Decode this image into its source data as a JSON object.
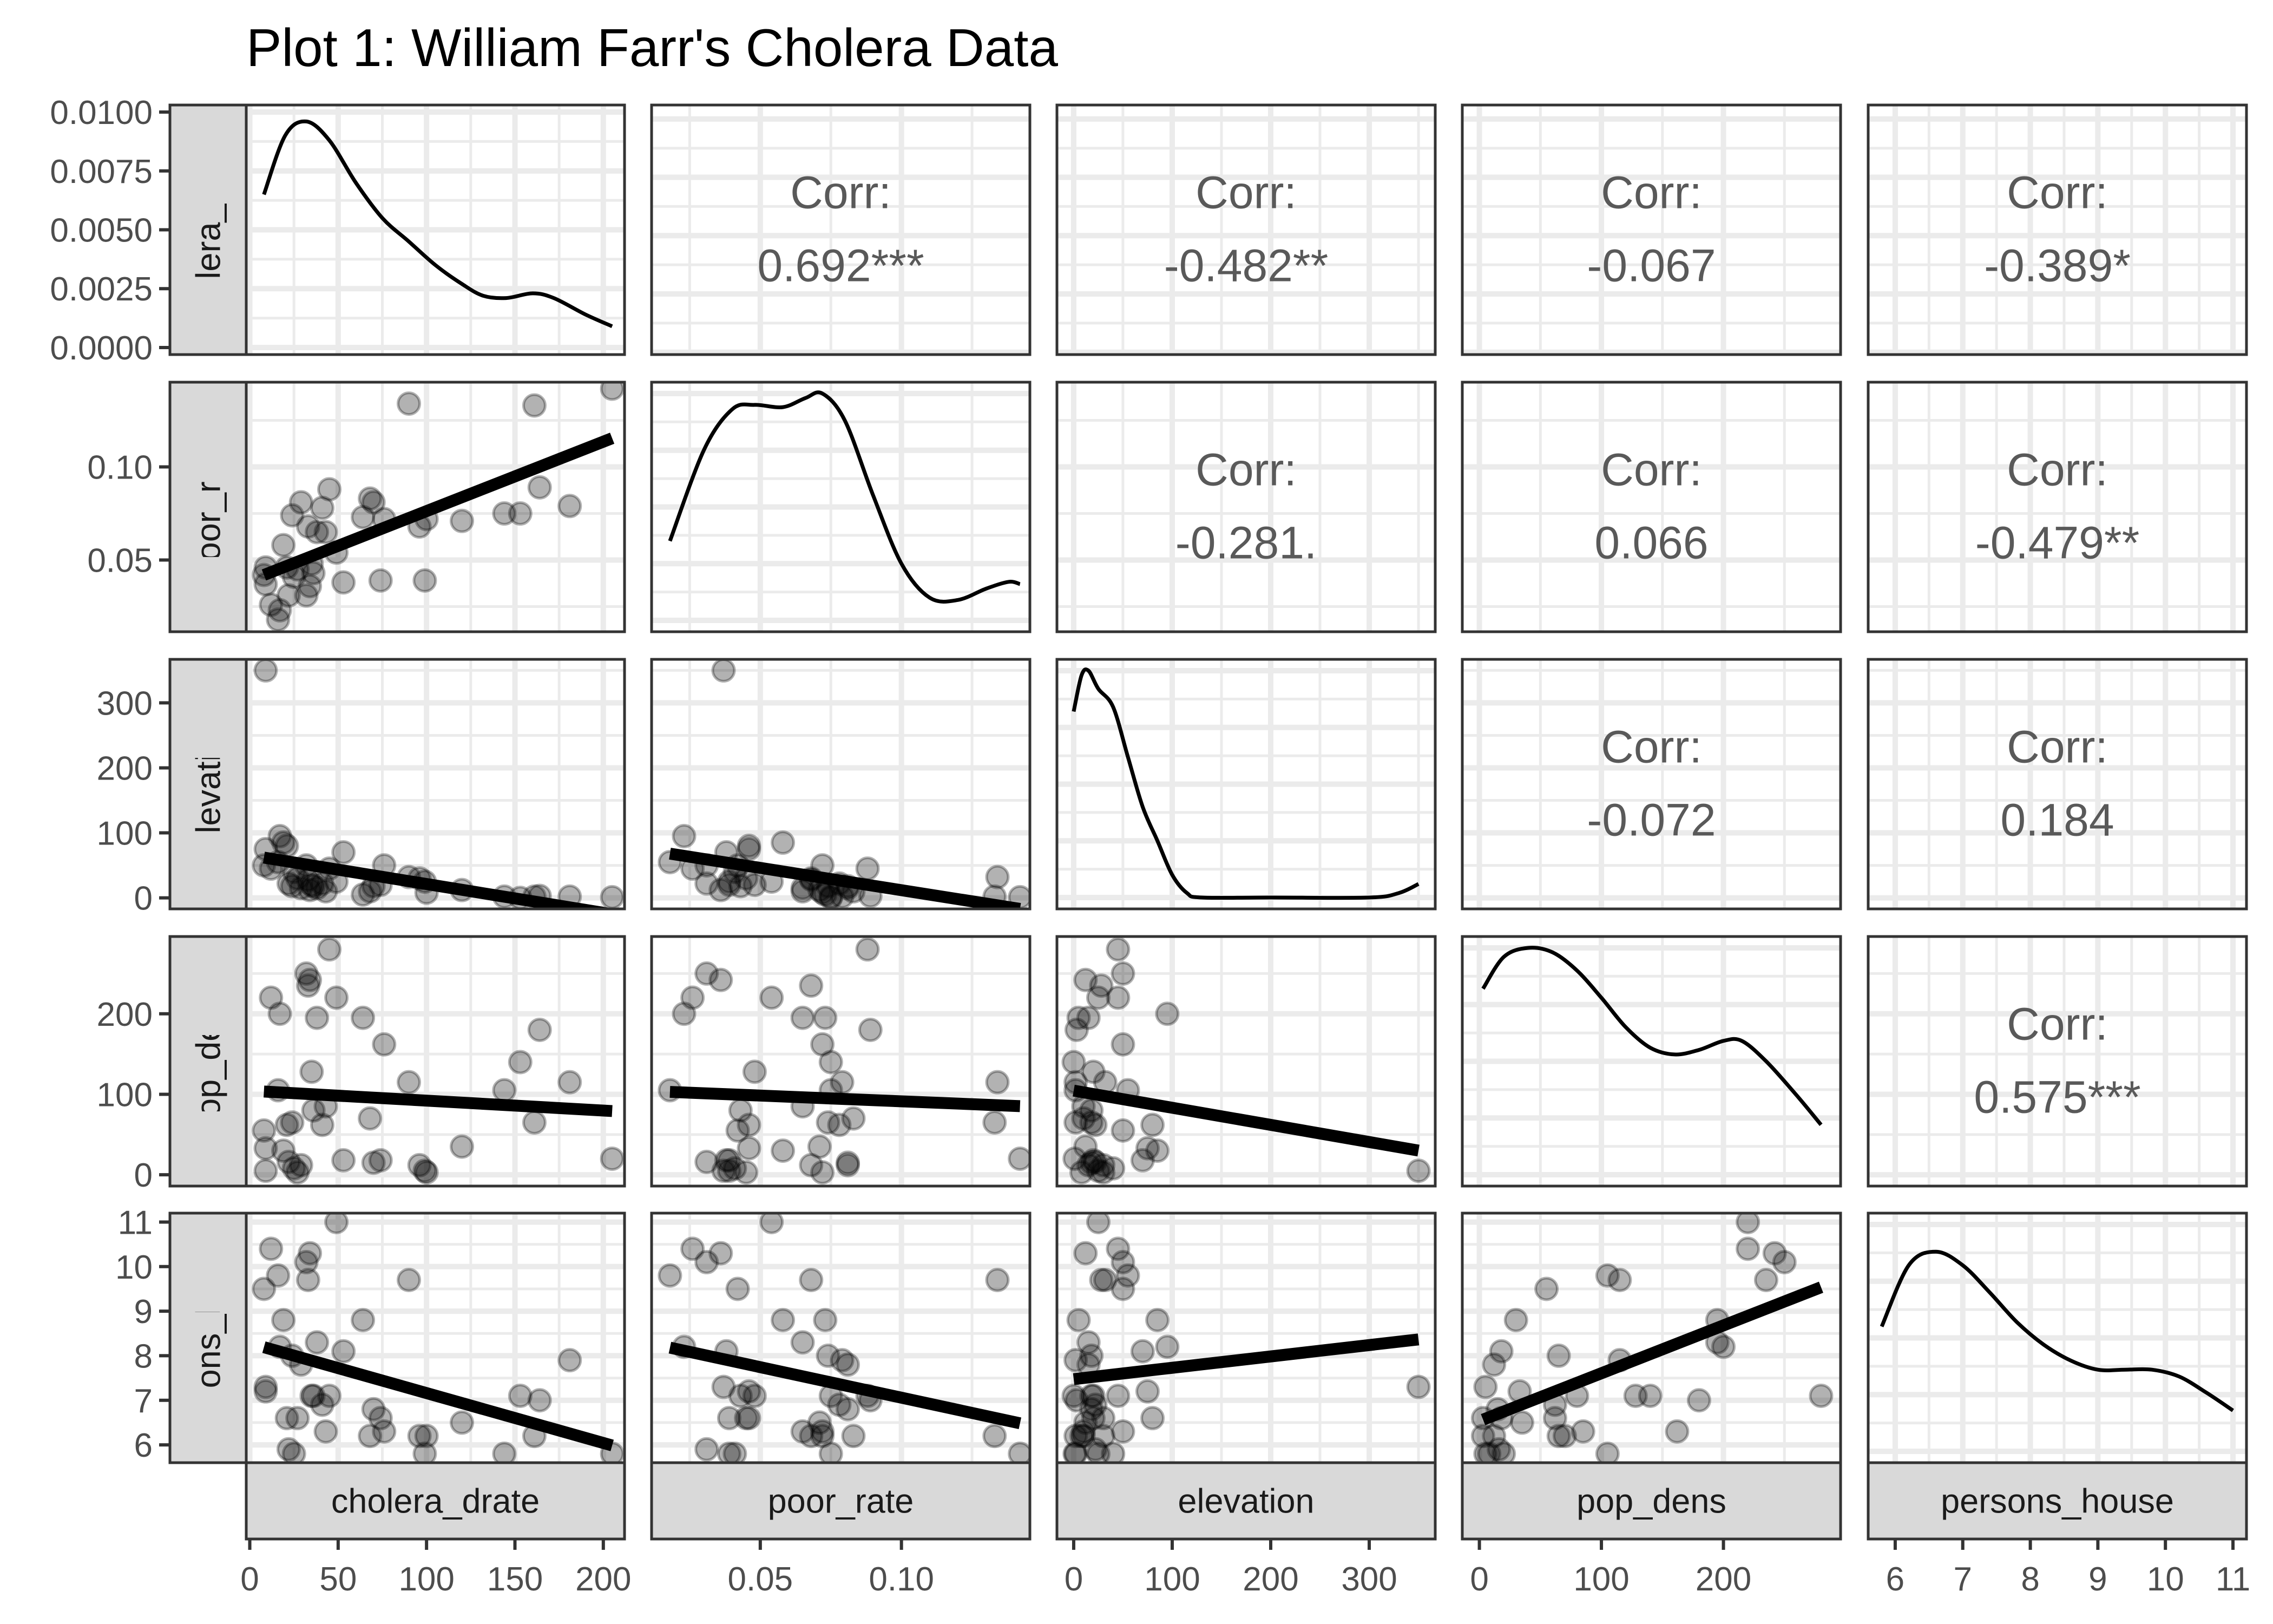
{
  "chart_data": {
    "type": "scatter",
    "subtype": "scatterplot-matrix",
    "title": "Plot 1: William Farr's Cholera Data",
    "variables": [
      "cholera_drate",
      "poor_rate",
      "elevation",
      "pop_dens",
      "persons_house"
    ],
    "axes": {
      "cholera_drate": {
        "range": [
          -2,
          212
        ],
        "ticks": [
          0,
          50,
          100,
          150,
          200
        ],
        "tick_labels": [
          "0",
          "50",
          "100",
          "150",
          "200"
        ]
      },
      "poor_rate": {
        "range": [
          0.0115,
          0.1455
        ],
        "ticks": [
          0.05,
          0.1
        ],
        "tick_labels": [
          "0.05",
          "0.10"
        ]
      },
      "elevation": {
        "range": [
          -17,
          367
        ],
        "ticks": [
          0,
          100,
          200,
          300
        ],
        "tick_labels": [
          "0",
          "100",
          "200",
          "300"
        ]
      },
      "pop_dens": {
        "range": [
          -14,
          296
        ],
        "ticks": [
          0,
          100,
          200
        ],
        "tick_labels": [
          "0",
          "100",
          "200"
        ]
      },
      "persons_house": {
        "range": [
          5.6,
          11.2
        ],
        "ticks": [
          6,
          7,
          8,
          9,
          10,
          11
        ],
        "tick_labels": [
          "6",
          "7",
          "8",
          "9",
          "10",
          "11"
        ]
      }
    },
    "density_axis": {
      "range": [
        -0.0003,
        0.0103
      ],
      "ticks": [
        0,
        0.0025,
        0.005,
        0.0075,
        0.01
      ],
      "tick_labels": [
        "0.0000",
        "0.0025",
        "0.0050",
        "0.0075",
        "0.0100"
      ]
    },
    "observations": {
      "cholera_drate": [
        8,
        9,
        9,
        12,
        16,
        17,
        19,
        21,
        22,
        24,
        25,
        27,
        29,
        32,
        33,
        34,
        35,
        36,
        38,
        41,
        43,
        45,
        49,
        53,
        64,
        68,
        70,
        74,
        76,
        90,
        96,
        99,
        100,
        120,
        144,
        153,
        161,
        164,
        181,
        205
      ],
      "poor_rate": [
        0.042,
        0.037,
        0.046,
        0.026,
        0.018,
        0.023,
        0.058,
        0.046,
        0.031,
        0.074,
        0.041,
        0.045,
        0.081,
        0.031,
        0.068,
        0.036,
        0.048,
        0.043,
        0.065,
        0.078,
        0.065,
        0.088,
        0.054,
        0.038,
        0.073,
        0.083,
        0.081,
        0.039,
        0.072,
        0.134,
        0.068,
        0.039,
        0.072,
        0.071,
        0.075,
        0.075,
        0.133,
        0.089,
        0.079,
        0.142
      ],
      "elevation": [
        50,
        350,
        75,
        45,
        55,
        95,
        85,
        80,
        22,
        18,
        40,
        30,
        15,
        50,
        28,
        12,
        20,
        18,
        15,
        22,
        10,
        45,
        25,
        70,
        5,
        10,
        18,
        20,
        50,
        32,
        30,
        25,
        8,
        12,
        2,
        0,
        2,
        3,
        2,
        1
      ],
      "pop_dens": [
        55,
        5,
        33,
        220,
        105,
        200,
        30,
        62,
        16,
        65,
        8,
        3,
        12,
        250,
        235,
        242,
        128,
        80,
        195,
        62,
        85,
        280,
        220,
        18,
        195,
        70,
        15,
        18,
        162,
        115,
        12,
        5,
        3,
        35,
        105,
        140,
        65,
        180,
        115,
        20
      ],
      "persons_house": [
        9.5,
        7.3,
        7.2,
        10.4,
        9.8,
        8.2,
        8.8,
        6.6,
        5.9,
        8.0,
        5.8,
        6.6,
        7.8,
        10.1,
        9.7,
        10.3,
        7.1,
        7.1,
        8.3,
        6.9,
        6.3,
        7.1,
        11.0,
        8.1,
        8.8,
        6.2,
        6.8,
        6.6,
        6.3,
        9.7,
        6.2,
        5.8,
        6.2,
        6.5,
        5.8,
        7.1,
        6.2,
        7.0,
        7.9,
        5.8
      ]
    },
    "densities": {
      "cholera_drate": [
        [
          8,
          0.0065
        ],
        [
          20,
          0.009
        ],
        [
          32,
          0.0096
        ],
        [
          45,
          0.0088
        ],
        [
          60,
          0.007
        ],
        [
          75,
          0.0055
        ],
        [
          90,
          0.0045
        ],
        [
          105,
          0.0035
        ],
        [
          120,
          0.0027
        ],
        [
          132,
          0.0022
        ],
        [
          145,
          0.0021
        ],
        [
          160,
          0.0023
        ],
        [
          172,
          0.0021
        ],
        [
          190,
          0.0014
        ],
        [
          205,
          0.0009
        ]
      ],
      "poor_rate": [
        [
          0.018,
          0.35
        ],
        [
          0.03,
          0.75
        ],
        [
          0.04,
          0.93
        ],
        [
          0.048,
          0.95
        ],
        [
          0.058,
          0.94
        ],
        [
          0.066,
          0.98
        ],
        [
          0.072,
          1.0
        ],
        [
          0.08,
          0.88
        ],
        [
          0.09,
          0.55
        ],
        [
          0.1,
          0.25
        ],
        [
          0.11,
          0.1
        ],
        [
          0.12,
          0.09
        ],
        [
          0.13,
          0.14
        ],
        [
          0.138,
          0.17
        ],
        [
          0.142,
          0.16
        ]
      ],
      "elevation": [
        [
          0,
          0.82
        ],
        [
          8,
          0.98
        ],
        [
          15,
          1.0
        ],
        [
          25,
          0.92
        ],
        [
          40,
          0.84
        ],
        [
          55,
          0.62
        ],
        [
          70,
          0.4
        ],
        [
          85,
          0.25
        ],
        [
          100,
          0.1
        ],
        [
          115,
          0.02
        ],
        [
          130,
          0.0
        ],
        [
          200,
          0.0
        ],
        [
          300,
          0.0
        ],
        [
          330,
          0.02
        ],
        [
          350,
          0.06
        ]
      ],
      "pop_dens": [
        [
          3,
          0.82
        ],
        [
          20,
          0.96
        ],
        [
          40,
          1.0
        ],
        [
          60,
          0.98
        ],
        [
          80,
          0.9
        ],
        [
          100,
          0.78
        ],
        [
          120,
          0.65
        ],
        [
          140,
          0.56
        ],
        [
          160,
          0.53
        ],
        [
          180,
          0.55
        ],
        [
          200,
          0.59
        ],
        [
          215,
          0.59
        ],
        [
          235,
          0.5
        ],
        [
          260,
          0.35
        ],
        [
          280,
          0.22
        ]
      ],
      "persons_house": [
        [
          5.8,
          0.55
        ],
        [
          6.2,
          0.82
        ],
        [
          6.6,
          0.88
        ],
        [
          7.0,
          0.82
        ],
        [
          7.4,
          0.7
        ],
        [
          7.8,
          0.57
        ],
        [
          8.2,
          0.47
        ],
        [
          8.6,
          0.4
        ],
        [
          9.0,
          0.36
        ],
        [
          9.4,
          0.36
        ],
        [
          9.8,
          0.36
        ],
        [
          10.2,
          0.33
        ],
        [
          10.6,
          0.26
        ],
        [
          11.0,
          0.18
        ]
      ]
    },
    "correlations": [
      {
        "row": "cholera_drate",
        "col": "poor_rate",
        "label": "Corr:",
        "value": "0.692***"
      },
      {
        "row": "cholera_drate",
        "col": "elevation",
        "label": "Corr:",
        "value": "-0.482**"
      },
      {
        "row": "cholera_drate",
        "col": "pop_dens",
        "label": "Corr:",
        "value": "-0.067"
      },
      {
        "row": "cholera_drate",
        "col": "persons_house",
        "label": "Corr:",
        "value": "-0.389*"
      },
      {
        "row": "poor_rate",
        "col": "elevation",
        "label": "Corr:",
        "value": "-0.281."
      },
      {
        "row": "poor_rate",
        "col": "pop_dens",
        "label": "Corr:",
        "value": "0.066"
      },
      {
        "row": "poor_rate",
        "col": "persons_house",
        "label": "Corr:",
        "value": "-0.479**"
      },
      {
        "row": "elevation",
        "col": "pop_dens",
        "label": "Corr:",
        "value": "-0.072"
      },
      {
        "row": "elevation",
        "col": "persons_house",
        "label": "Corr:",
        "value": "0.184"
      },
      {
        "row": "pop_dens",
        "col": "persons_house",
        "label": "Corr:",
        "value": "0.575***"
      }
    ],
    "fit_lines": "linear regression (lm) in each lower panel",
    "colors": {
      "points": "#000000",
      "point_alpha": 0.3,
      "line": "#000000",
      "strip_fill": "#d9d9d9",
      "grid": "#ebebeb",
      "corr_text": "#595959"
    },
    "grid": true,
    "legend": "none"
  }
}
